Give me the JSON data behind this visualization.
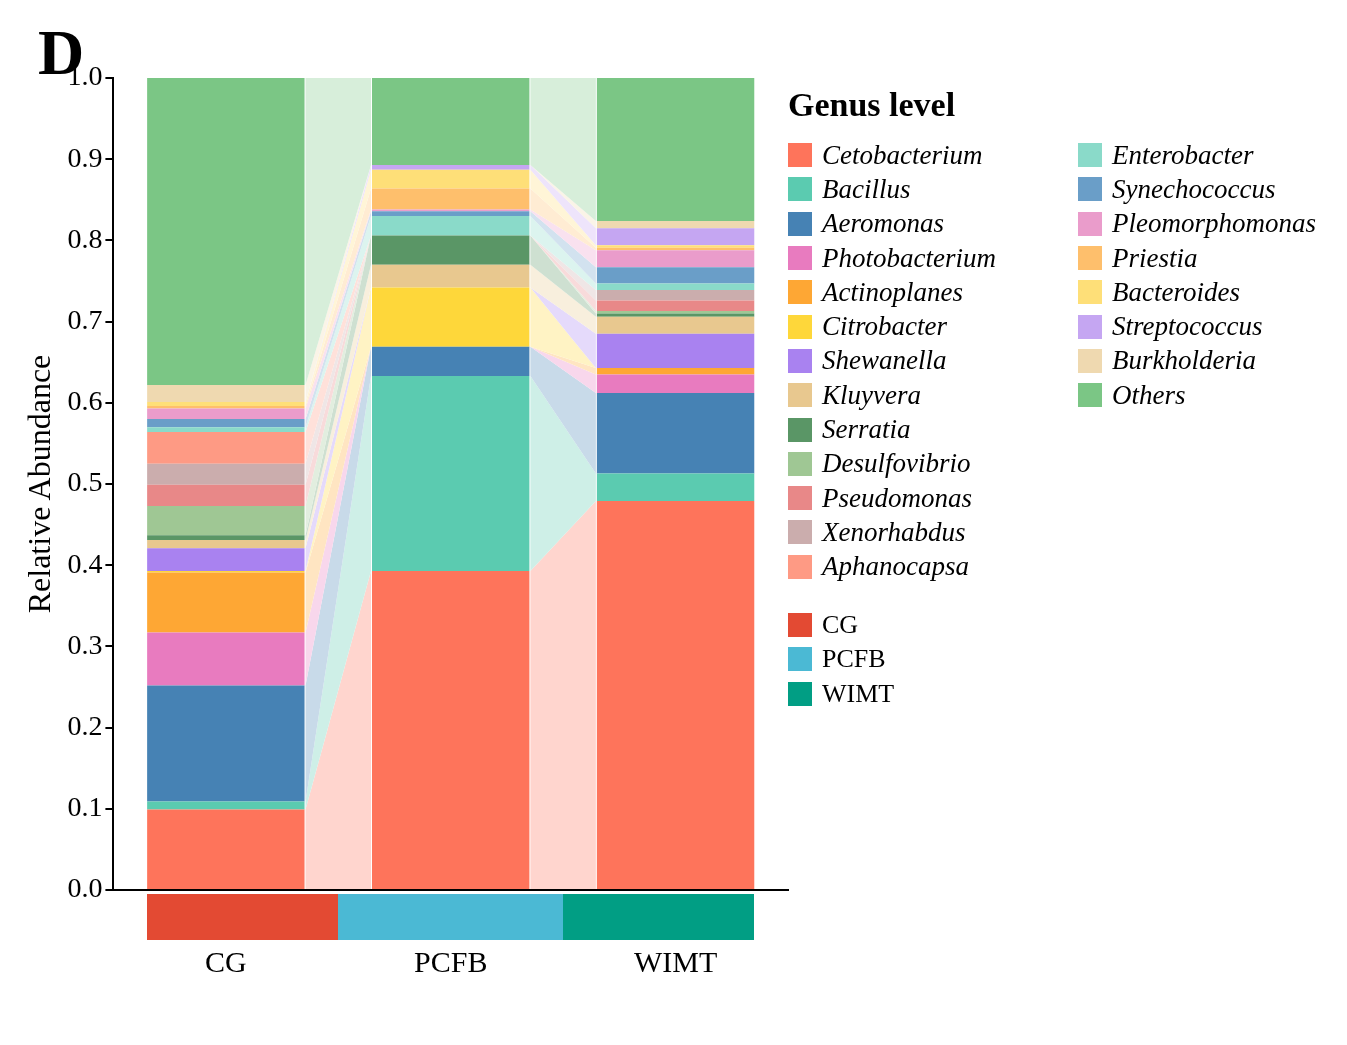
{
  "chart_data": {
    "type": "bar",
    "title": "D",
    "stacked": true,
    "ylabel": "Relative Abundance",
    "legend_title": "Genus level",
    "legend": "right",
    "grid": false,
    "categories": [
      "CG",
      "PCFB",
      "WIMT"
    ],
    "colors": [
      "#e34a33",
      "#4bb9d4",
      "#019e84"
    ],
    "ylim": [
      0,
      1
    ],
    "yticks": [
      {
        "value": 0,
        "label": "0.0"
      },
      {
        "value": 0.1,
        "label": "0.1"
      },
      {
        "value": 0.2,
        "label": "0.2"
      },
      {
        "value": 0.3,
        "label": "0.3"
      },
      {
        "value": 0.4,
        "label": "0.4"
      },
      {
        "value": 0.5,
        "label": "0.5"
      },
      {
        "value": 0.6,
        "label": "0.6"
      },
      {
        "value": 0.7,
        "label": "0.7"
      },
      {
        "value": 0.8,
        "label": "0.8"
      },
      {
        "value": 0.9,
        "label": "0.9"
      },
      {
        "value": 1,
        "label": "1.0"
      }
    ],
    "series": [
      {
        "name": "Cetobacterium",
        "color": "#fe745b",
        "values": [
          0.099,
          0.393,
          0.479
        ]
      },
      {
        "name": "Bacillus",
        "color": "#5bcbb0",
        "values": [
          0.01,
          0.24,
          0.034
        ]
      },
      {
        "name": "Aeromonas",
        "color": "#4682b4",
        "values": [
          0.143,
          0.036,
          0.099
        ]
      },
      {
        "name": "Photobacterium",
        "color": "#e87bbf",
        "values": [
          0.065,
          0,
          0.023
        ]
      },
      {
        "name": "Actinoplanes",
        "color": "#fea734",
        "values": [
          0.074,
          0,
          0.008
        ]
      },
      {
        "name": "Citrobacter",
        "color": "#fed73a",
        "values": [
          0.002,
          0.073,
          0
        ]
      },
      {
        "name": "Shewanella",
        "color": "#a982f0",
        "values": [
          0.028,
          0,
          0.042
        ]
      },
      {
        "name": "Kluyvera",
        "color": "#e8c88f",
        "values": [
          0.01,
          0.028,
          0.021
        ]
      },
      {
        "name": "Serratia",
        "color": "#5a9666",
        "values": [
          0.006,
          0.036,
          0.004
        ]
      },
      {
        "name": "Desulfovibrio",
        "color": "#9fc794",
        "values": [
          0.036,
          0,
          0.003
        ]
      },
      {
        "name": "Pseudomonas",
        "color": "#e88888",
        "values": [
          0.026,
          0,
          0.013
        ]
      },
      {
        "name": "Xenorhabdus",
        "color": "#cbadad",
        "values": [
          0.026,
          0,
          0.013
        ]
      },
      {
        "name": "Aphanocapsa",
        "color": "#fe9a84",
        "values": [
          0.039,
          0,
          0
        ]
      },
      {
        "name": "Enterobacter",
        "color": "#8adac9",
        "values": [
          0.006,
          0.024,
          0.008
        ]
      },
      {
        "name": "Synechococcus",
        "color": "#6a9ec8",
        "values": [
          0.01,
          0.006,
          0.02
        ]
      },
      {
        "name": "Pleomorphomonas",
        "color": "#ea9ccb",
        "values": [
          0.013,
          0.002,
          0.021
        ]
      },
      {
        "name": "Priestia",
        "color": "#febf6c",
        "values": [
          0.003,
          0.026,
          0.003
        ]
      },
      {
        "name": "Bacteroides",
        "color": "#fedf78",
        "values": [
          0.005,
          0.023,
          0.003
        ]
      },
      {
        "name": "Streptococcus",
        "color": "#c5a6f2",
        "values": [
          0,
          0.006,
          0.021
        ]
      },
      {
        "name": "Burkholderia",
        "color": "#efd9b0",
        "values": [
          0.021,
          0,
          0.009
        ]
      },
      {
        "name": "Others",
        "color": "#7bc685",
        "values": [
          0.378,
          0.107,
          0.176
        ]
      }
    ]
  }
}
